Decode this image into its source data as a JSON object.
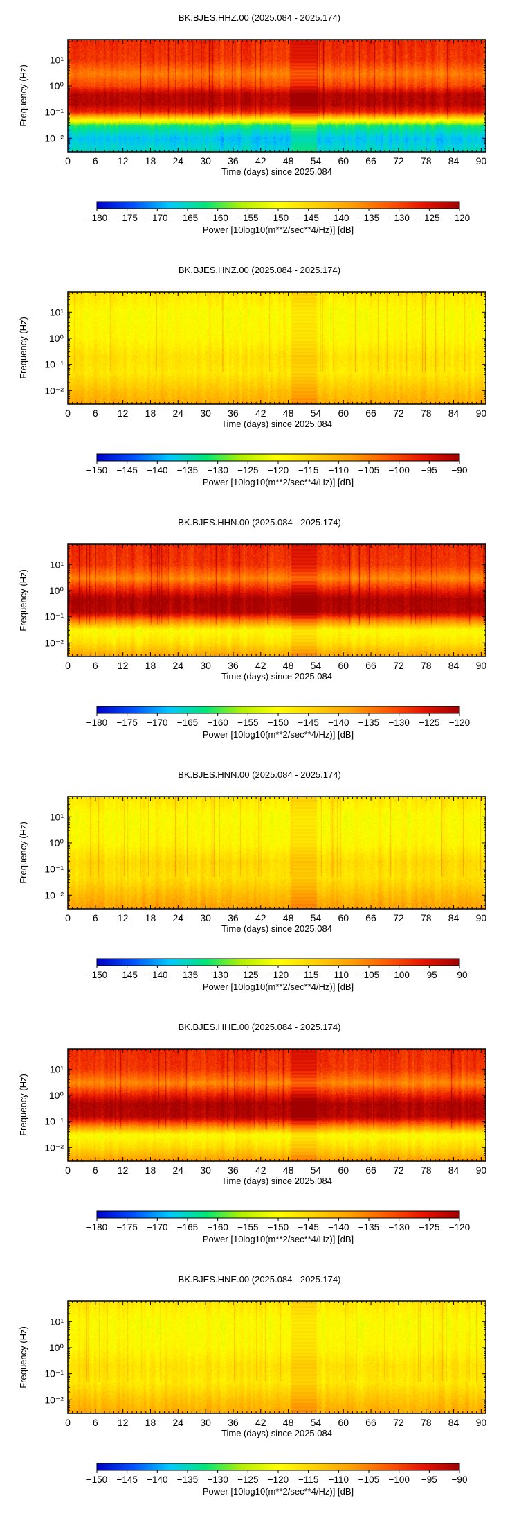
{
  "chart_data": [
    {
      "type": "heatmap",
      "title": "BK.BJES.HHZ.00 (2025.084 - 2025.174)",
      "xlabel": "Time (days) since 2025.084",
      "ylabel": "Frequency (Hz)",
      "xlim": [
        0,
        91
      ],
      "ylim": [
        0.003,
        60
      ],
      "y_scale": "log",
      "x_ticks": [
        0,
        6,
        12,
        18,
        24,
        30,
        36,
        42,
        48,
        54,
        60,
        66,
        72,
        78,
        84,
        90
      ],
      "y_ticks": [
        {
          "value": 0.01,
          "label": "10⁻²"
        },
        {
          "value": 0.1,
          "label": "10⁻¹"
        },
        {
          "value": 1,
          "label": "10⁰"
        },
        {
          "value": 10,
          "label": "10¹"
        }
      ],
      "colorbar": {
        "label": "Power [10log10(m**2/sec**4/Hz)] [dB]",
        "range": [
          -180,
          -120
        ],
        "ticks": [
          -180,
          -175,
          -170,
          -165,
          -160,
          -155,
          -150,
          -145,
          -140,
          -135,
          -130,
          -125,
          -120
        ],
        "colormap": [
          "#0000c8",
          "#0050ff",
          "#00c8ff",
          "#00e678",
          "#b4f000",
          "#ffff00",
          "#ffd200",
          "#ffa000",
          "#ff5a00",
          "#e61400",
          "#a00000"
        ]
      },
      "data_gap_days": [
        48.6,
        54.2
      ],
      "spectral_profile": [
        {
          "freq_hz": 0.003,
          "power_db": -165
        },
        {
          "freq_hz": 0.01,
          "power_db": -168
        },
        {
          "freq_hz": 0.03,
          "power_db": -162
        },
        {
          "freq_hz": 0.06,
          "power_db": -145
        },
        {
          "freq_hz": 0.1,
          "power_db": -128
        },
        {
          "freq_hz": 0.2,
          "power_db": -122
        },
        {
          "freq_hz": 0.5,
          "power_db": -122
        },
        {
          "freq_hz": 1,
          "power_db": -130
        },
        {
          "freq_hz": 3,
          "power_db": -135
        },
        {
          "freq_hz": 10,
          "power_db": -129
        },
        {
          "freq_hz": 50,
          "power_db": -128
        }
      ]
    },
    {
      "type": "heatmap",
      "title": "BK.BJES.HNZ.00 (2025.084 - 2025.174)",
      "xlabel": "Time (days) since 2025.084",
      "ylabel": "Frequency (Hz)",
      "xlim": [
        0,
        91
      ],
      "ylim": [
        0.003,
        60
      ],
      "y_scale": "log",
      "x_ticks": [
        0,
        6,
        12,
        18,
        24,
        30,
        36,
        42,
        48,
        54,
        60,
        66,
        72,
        78,
        84,
        90
      ],
      "y_ticks": [
        {
          "value": 0.01,
          "label": "10⁻²"
        },
        {
          "value": 0.1,
          "label": "10⁻¹"
        },
        {
          "value": 1,
          "label": "10⁰"
        },
        {
          "value": 10,
          "label": "10¹"
        }
      ],
      "colorbar": {
        "label": "Power [10log10(m**2/sec**4/Hz)] [dB]",
        "range": [
          -150,
          -90
        ],
        "ticks": [
          -150,
          -145,
          -140,
          -135,
          -130,
          -125,
          -120,
          -115,
          -110,
          -105,
          -100,
          -95,
          -90
        ],
        "colormap": [
          "#0000c8",
          "#0050ff",
          "#00c8ff",
          "#00e678",
          "#b4f000",
          "#ffff00",
          "#ffd200",
          "#ffa000",
          "#ff5a00",
          "#e61400",
          "#a00000"
        ]
      },
      "data_gap_days": [
        48.6,
        54.2
      ],
      "spectral_profile": [
        {
          "freq_hz": 0.003,
          "power_db": -109
        },
        {
          "freq_hz": 0.01,
          "power_db": -112
        },
        {
          "freq_hz": 0.05,
          "power_db": -117
        },
        {
          "freq_hz": 0.2,
          "power_db": -116
        },
        {
          "freq_hz": 1,
          "power_db": -119
        },
        {
          "freq_hz": 10,
          "power_db": -120
        },
        {
          "freq_hz": 50,
          "power_db": -117
        }
      ]
    },
    {
      "type": "heatmap",
      "title": "BK.BJES.HHN.00 (2025.084 - 2025.174)",
      "xlabel": "Time (days) since 2025.084",
      "ylabel": "Frequency (Hz)",
      "xlim": [
        0,
        91
      ],
      "ylim": [
        0.003,
        60
      ],
      "y_scale": "log",
      "x_ticks": [
        0,
        6,
        12,
        18,
        24,
        30,
        36,
        42,
        48,
        54,
        60,
        66,
        72,
        78,
        84,
        90
      ],
      "y_ticks": [
        {
          "value": 0.01,
          "label": "10⁻²"
        },
        {
          "value": 0.1,
          "label": "10⁻¹"
        },
        {
          "value": 1,
          "label": "10⁰"
        },
        {
          "value": 10,
          "label": "10¹"
        }
      ],
      "colorbar": {
        "label": "Power [10log10(m**2/sec**4/Hz)] [dB]",
        "range": [
          -180,
          -120
        ],
        "ticks": [
          -180,
          -175,
          -170,
          -165,
          -160,
          -155,
          -150,
          -145,
          -140,
          -135,
          -130,
          -125,
          -120
        ],
        "colormap": [
          "#0000c8",
          "#0050ff",
          "#00c8ff",
          "#00e678",
          "#b4f000",
          "#ffff00",
          "#ffd200",
          "#ffa000",
          "#ff5a00",
          "#e61400",
          "#a00000"
        ]
      },
      "data_gap_days": [
        48.6,
        54.2
      ],
      "spectral_profile": [
        {
          "freq_hz": 0.003,
          "power_db": -138
        },
        {
          "freq_hz": 0.01,
          "power_db": -146
        },
        {
          "freq_hz": 0.03,
          "power_db": -150
        },
        {
          "freq_hz": 0.08,
          "power_db": -134
        },
        {
          "freq_hz": 0.15,
          "power_db": -122
        },
        {
          "freq_hz": 0.5,
          "power_db": -121
        },
        {
          "freq_hz": 1.2,
          "power_db": -128
        },
        {
          "freq_hz": 3,
          "power_db": -136
        },
        {
          "freq_hz": 10,
          "power_db": -129
        },
        {
          "freq_hz": 50,
          "power_db": -128
        }
      ]
    },
    {
      "type": "heatmap",
      "title": "BK.BJES.HNN.00 (2025.084 - 2025.174)",
      "xlabel": "Time (days) since 2025.084",
      "ylabel": "Frequency (Hz)",
      "xlim": [
        0,
        91
      ],
      "ylim": [
        0.003,
        60
      ],
      "y_scale": "log",
      "x_ticks": [
        0,
        6,
        12,
        18,
        24,
        30,
        36,
        42,
        48,
        54,
        60,
        66,
        72,
        78,
        84,
        90
      ],
      "y_ticks": [
        {
          "value": 0.01,
          "label": "10⁻²"
        },
        {
          "value": 0.1,
          "label": "10⁻¹"
        },
        {
          "value": 1,
          "label": "10⁰"
        },
        {
          "value": 10,
          "label": "10¹"
        }
      ],
      "colorbar": {
        "label": "Power [10log10(m**2/sec**4/Hz)] [dB]",
        "range": [
          -150,
          -90
        ],
        "ticks": [
          -150,
          -145,
          -140,
          -135,
          -130,
          -125,
          -120,
          -115,
          -110,
          -105,
          -100,
          -95,
          -90
        ],
        "colormap": [
          "#0000c8",
          "#0050ff",
          "#00c8ff",
          "#00e678",
          "#b4f000",
          "#ffff00",
          "#ffd200",
          "#ffa000",
          "#ff5a00",
          "#e61400",
          "#a00000"
        ]
      },
      "data_gap_days": [
        48.6,
        54.2
      ],
      "spectral_profile": [
        {
          "freq_hz": 0.003,
          "power_db": -108
        },
        {
          "freq_hz": 0.01,
          "power_db": -111
        },
        {
          "freq_hz": 0.05,
          "power_db": -116
        },
        {
          "freq_hz": 0.2,
          "power_db": -115
        },
        {
          "freq_hz": 1,
          "power_db": -119
        },
        {
          "freq_hz": 10,
          "power_db": -120
        },
        {
          "freq_hz": 50,
          "power_db": -117
        }
      ]
    },
    {
      "type": "heatmap",
      "title": "BK.BJES.HHE.00 (2025.084 - 2025.174)",
      "xlabel": "Time (days) since 2025.084",
      "ylabel": "Frequency (Hz)",
      "xlim": [
        0,
        91
      ],
      "ylim": [
        0.003,
        60
      ],
      "y_scale": "log",
      "x_ticks": [
        0,
        6,
        12,
        18,
        24,
        30,
        36,
        42,
        48,
        54,
        60,
        66,
        72,
        78,
        84,
        90
      ],
      "y_ticks": [
        {
          "value": 0.01,
          "label": "10⁻²"
        },
        {
          "value": 0.1,
          "label": "10⁻¹"
        },
        {
          "value": 1,
          "label": "10⁰"
        },
        {
          "value": 10,
          "label": "10¹"
        }
      ],
      "colorbar": {
        "label": "Power [10log10(m**2/sec**4/Hz)] [dB]",
        "range": [
          -180,
          -120
        ],
        "ticks": [
          -180,
          -175,
          -170,
          -165,
          -160,
          -155,
          -150,
          -145,
          -140,
          -135,
          -130,
          -125,
          -120
        ],
        "colormap": [
          "#0000c8",
          "#0050ff",
          "#00c8ff",
          "#00e678",
          "#b4f000",
          "#ffff00",
          "#ffd200",
          "#ffa000",
          "#ff5a00",
          "#e61400",
          "#a00000"
        ]
      },
      "data_gap_days": [
        48.6,
        54.2
      ],
      "spectral_profile": [
        {
          "freq_hz": 0.003,
          "power_db": -137
        },
        {
          "freq_hz": 0.01,
          "power_db": -145
        },
        {
          "freq_hz": 0.03,
          "power_db": -150
        },
        {
          "freq_hz": 0.08,
          "power_db": -133
        },
        {
          "freq_hz": 0.15,
          "power_db": -122
        },
        {
          "freq_hz": 0.5,
          "power_db": -121
        },
        {
          "freq_hz": 1.2,
          "power_db": -128
        },
        {
          "freq_hz": 3,
          "power_db": -136
        },
        {
          "freq_hz": 10,
          "power_db": -129
        },
        {
          "freq_hz": 50,
          "power_db": -128
        }
      ]
    },
    {
      "type": "heatmap",
      "title": "BK.BJES.HNE.00 (2025.084 - 2025.174)",
      "xlabel": "Time (days) since 2025.084",
      "ylabel": "Frequency (Hz)",
      "xlim": [
        0,
        91
      ],
      "ylim": [
        0.003,
        60
      ],
      "y_scale": "log",
      "x_ticks": [
        0,
        6,
        12,
        18,
        24,
        30,
        36,
        42,
        48,
        54,
        60,
        66,
        72,
        78,
        84,
        90
      ],
      "y_ticks": [
        {
          "value": 0.01,
          "label": "10⁻²"
        },
        {
          "value": 0.1,
          "label": "10⁻¹"
        },
        {
          "value": 1,
          "label": "10⁰"
        },
        {
          "value": 10,
          "label": "10¹"
        }
      ],
      "colorbar": {
        "label": "Power [10log10(m**2/sec**4/Hz)] [dB]",
        "range": [
          -150,
          -90
        ],
        "ticks": [
          -150,
          -145,
          -140,
          -135,
          -130,
          -125,
          -120,
          -115,
          -110,
          -105,
          -100,
          -95,
          -90
        ],
        "colormap": [
          "#0000c8",
          "#0050ff",
          "#00c8ff",
          "#00e678",
          "#b4f000",
          "#ffff00",
          "#ffd200",
          "#ffa000",
          "#ff5a00",
          "#e61400",
          "#a00000"
        ]
      },
      "data_gap_days": [
        48.6,
        54.2
      ],
      "spectral_profile": [
        {
          "freq_hz": 0.003,
          "power_db": -109
        },
        {
          "freq_hz": 0.01,
          "power_db": -112
        },
        {
          "freq_hz": 0.05,
          "power_db": -117
        },
        {
          "freq_hz": 0.2,
          "power_db": -116
        },
        {
          "freq_hz": 1,
          "power_db": -119
        },
        {
          "freq_hz": 10,
          "power_db": -120
        },
        {
          "freq_hz": 50,
          "power_db": -117
        }
      ]
    }
  ]
}
